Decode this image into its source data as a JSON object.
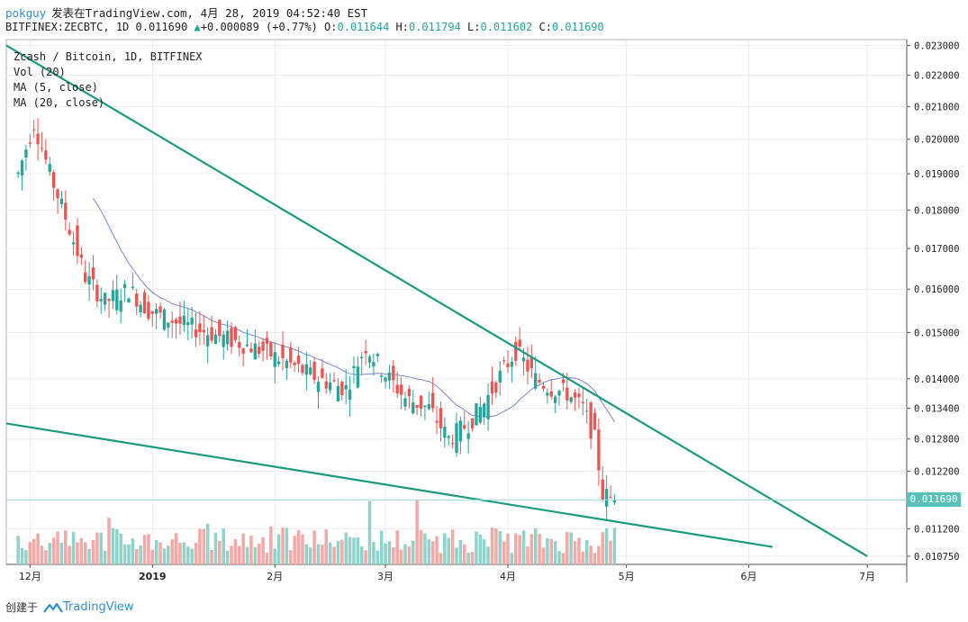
{
  "header": {
    "user": "pokguy",
    "published": "发表在TradingView.com, 4月 28, 2019 04:52:40 EST",
    "symbol_line": "BITFINEX:ZECBTC, 1D 0.011690",
    "change": "+0.000089 (+0.77%)",
    "o_label": "O:",
    "o_value": "0.011644",
    "h_label": "H:",
    "h_value": "0.011794",
    "l_label": "L:",
    "l_value": "0.011602",
    "c_label": "C:",
    "c_value": "0.011690"
  },
  "legend": {
    "title": "Zcash / Bitcoin, 1D, BITFINEX",
    "vol": "Vol (20)",
    "ma5": "MA (5, close)",
    "ma20": "MA (20, close)"
  },
  "price_label": "0.011690",
  "footer": {
    "created": "创建于",
    "brand": "TradingView"
  },
  "colors": {
    "up": "#26a69a",
    "down": "#ef5350",
    "ma20": "#7b86d6",
    "ma5": "#f5a57a",
    "trend": "#1a9a80",
    "accent": "#2a8fd6"
  },
  "chart_data": {
    "type": "candlestick",
    "title": "Zcash / Bitcoin, 1D, BITFINEX",
    "y_scale": "log",
    "y_ticks": [
      "0.023000",
      "0.022000",
      "0.021000",
      "0.020000",
      "0.019000",
      "0.018000",
      "0.017000",
      "0.016000",
      "0.015000",
      "0.014000",
      "0.013400",
      "0.012800",
      "0.012200",
      "0.011690",
      "0.011200",
      "0.010750"
    ],
    "x_ticks": [
      "12月",
      "2019",
      "2月",
      "3月",
      "4月",
      "5月",
      "6月",
      "7月"
    ],
    "last_close": 0.01169,
    "candles_description_points": [
      [
        "2018-11-28",
        0.019
      ],
      [
        "2018-12-02",
        0.0205
      ],
      [
        "2018-12-06",
        0.019
      ],
      [
        "2018-12-10",
        0.0178
      ],
      [
        "2018-12-15",
        0.0163
      ],
      [
        "2018-12-20",
        0.0157
      ],
      [
        "2018-12-26",
        0.016
      ],
      [
        "2018-12-31",
        0.0155
      ],
      [
        "2019-01-08",
        0.0152
      ],
      [
        "2019-01-15",
        0.015
      ],
      [
        "2019-01-22",
        0.0148
      ],
      [
        "2019-01-29",
        0.0146
      ],
      [
        "2019-02-05",
        0.0143
      ],
      [
        "2019-02-12",
        0.014
      ],
      [
        "2019-02-19",
        0.0138
      ],
      [
        "2019-02-24",
        0.0147
      ],
      [
        "2019-03-01",
        0.0141
      ],
      [
        "2019-03-06",
        0.0136
      ],
      [
        "2019-03-12",
        0.0134
      ],
      [
        "2019-03-17",
        0.0128
      ],
      [
        "2019-03-22",
        0.0131
      ],
      [
        "2019-03-26",
        0.0135
      ],
      [
        "2019-03-31",
        0.0142
      ],
      [
        "2019-04-03",
        0.0146
      ],
      [
        "2019-04-08",
        0.014
      ],
      [
        "2019-04-12",
        0.0138
      ],
      [
        "2019-04-16",
        0.0137
      ],
      [
        "2019-04-20",
        0.0134
      ],
      [
        "2019-04-23",
        0.0128
      ],
      [
        "2019-04-25",
        0.0118
      ],
      [
        "2019-04-28",
        0.01169
      ]
    ],
    "trendlines": [
      {
        "name": "upper",
        "from": [
          "2018-11-25",
          0.023
        ],
        "to": [
          "2019-07-01",
          0.01075
        ]
      },
      {
        "name": "lower",
        "from": [
          "2018-11-25",
          0.0131
        ],
        "to": [
          "2019-06-07",
          0.0109
        ]
      }
    ]
  }
}
